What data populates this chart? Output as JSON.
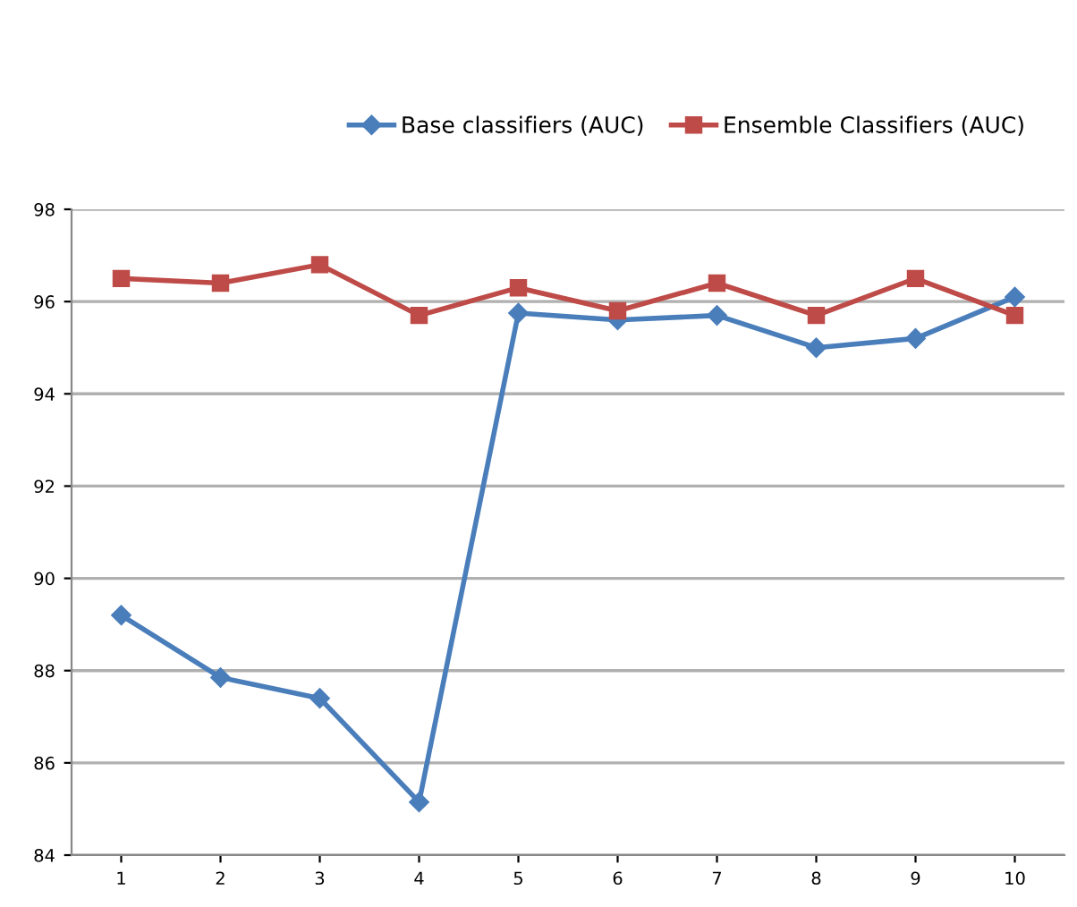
{
  "chart_data": {
    "type": "line",
    "categories": [
      "1",
      "2",
      "3",
      "4",
      "5",
      "6",
      "7",
      "8",
      "9",
      "10"
    ],
    "series": [
      {
        "name": "Base classifiers (AUC)",
        "color": "#4a7ebb",
        "marker": "diamond",
        "values": [
          89.2,
          87.85,
          87.4,
          85.15,
          95.75,
          95.6,
          95.7,
          95.0,
          95.2,
          96.1
        ]
      },
      {
        "name": "Ensemble Classifiers (AUC)",
        "color": "#be4b48",
        "marker": "square",
        "values": [
          96.5,
          96.4,
          96.8,
          95.7,
          96.3,
          95.8,
          96.4,
          95.7,
          96.5,
          95.7
        ]
      }
    ],
    "ylim": [
      84,
      98
    ],
    "yticks": [
      84,
      86,
      88,
      90,
      92,
      94,
      96,
      98
    ],
    "grid": "y",
    "legend": "top",
    "line_style": "solid"
  }
}
